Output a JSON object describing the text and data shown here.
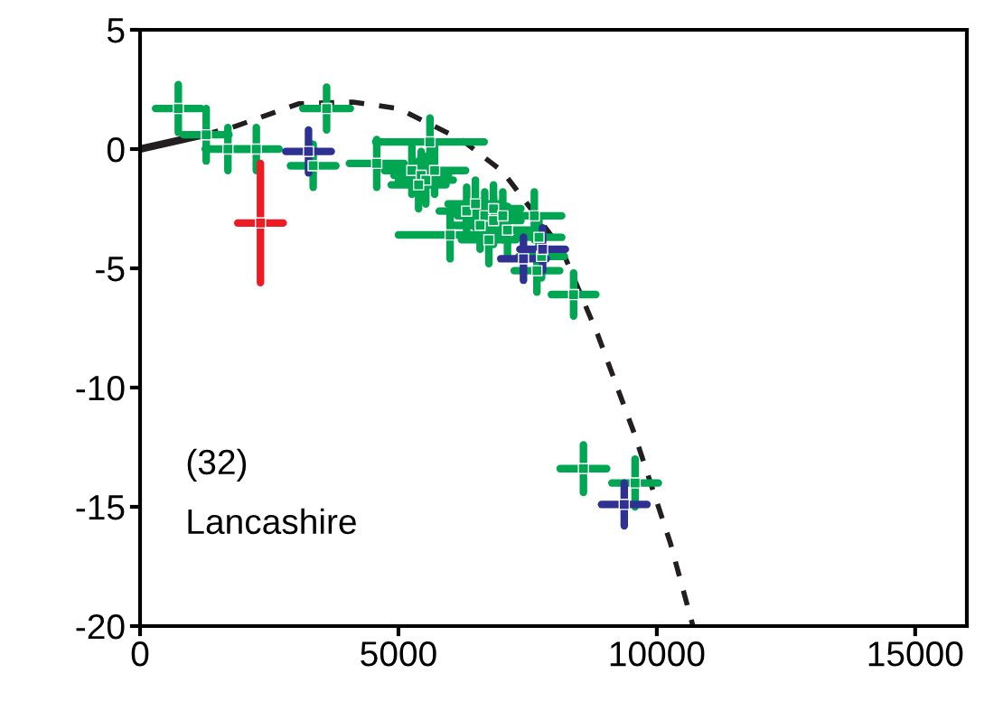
{
  "chart_data": {
    "type": "scatter",
    "grid": false,
    "legend": false,
    "xlim": [
      0,
      16000
    ],
    "ylim": [
      -20,
      5
    ],
    "xticks": [
      0,
      5000,
      10000,
      15000
    ],
    "yticks": [
      -20,
      -15,
      -10,
      -5,
      0,
      5
    ],
    "annotations": [
      "(32)",
      "Lancashire"
    ],
    "series": [
      {
        "marker": "square",
        "color": "#00a651",
        "x": [
          740,
          1280,
          1700,
          2250,
          3610,
          3350,
          4580,
          5610,
          5260,
          5440,
          5530,
          5390,
          5700,
          6000,
          6320,
          6490,
          6670,
          6840,
          6840,
          7020,
          6580,
          7110,
          6750,
          7630,
          7720,
          7770,
          7680,
          8390,
          8580,
          9580
        ],
        "values": [
          1.7,
          0.6,
          0.0,
          0.0,
          1.7,
          -0.7,
          -0.6,
          0.3,
          -0.9,
          -1.1,
          -1.3,
          -1.5,
          -0.9,
          -3.6,
          -2.6,
          -2.3,
          -2.8,
          -2.5,
          -3.0,
          -2.8,
          -3.2,
          -3.4,
          -3.8,
          -2.8,
          -3.7,
          -4.5,
          -5.1,
          -6.1,
          -13.4,
          -14.0
        ],
        "xerrors": [
          440,
          440,
          440,
          440,
          460,
          440,
          530,
          1050,
          530,
          530,
          530,
          530,
          600,
          1000,
          530,
          530,
          530,
          530,
          530,
          530,
          530,
          530,
          530,
          530,
          440,
          440,
          440,
          430,
          450,
          450
        ],
        "errors": [
          1.0,
          1.1,
          0.9,
          0.9,
          0.9,
          0.9,
          1.0,
          1.0,
          1.0,
          1.0,
          1.0,
          1.0,
          1.0,
          1.0,
          1.0,
          1.0,
          1.0,
          1.0,
          1.0,
          1.0,
          1.0,
          1.0,
          1.0,
          1.0,
          0.9,
          0.9,
          0.9,
          0.9,
          1.0,
          1.0
        ]
      },
      {
        "marker": "square",
        "color": "#2e3192",
        "x": [
          3260,
          7420,
          7790,
          9370
        ],
        "values": [
          -0.1,
          -4.6,
          -4.2,
          -14.9
        ],
        "xerrors": [
          440,
          440,
          440,
          440
        ],
        "errors": [
          0.9,
          0.9,
          0.9,
          0.9
        ]
      },
      {
        "marker": "square",
        "color": "#ed1c24",
        "x": [
          2330
        ],
        "values": [
          -3.1
        ],
        "xerrors": [
          440
        ],
        "errors": [
          2.5
        ]
      },
      {
        "type": "line",
        "line_style": "solid",
        "color": "#231f20",
        "x": [
          0,
          1230
        ],
        "values": [
          0,
          0.6
        ]
      },
      {
        "type": "line",
        "line_style": "dashed",
        "color": "#231f20",
        "x": [
          1230,
          1840,
          3070,
          4120,
          5000,
          6230,
          7020,
          8160,
          8860,
          9560,
          10260,
          10700
        ],
        "values": [
          0.6,
          0.95,
          1.9,
          1.97,
          1.7,
          0.38,
          -0.95,
          -4.2,
          -7.8,
          -11.9,
          -16.5,
          -20
        ]
      }
    ]
  }
}
